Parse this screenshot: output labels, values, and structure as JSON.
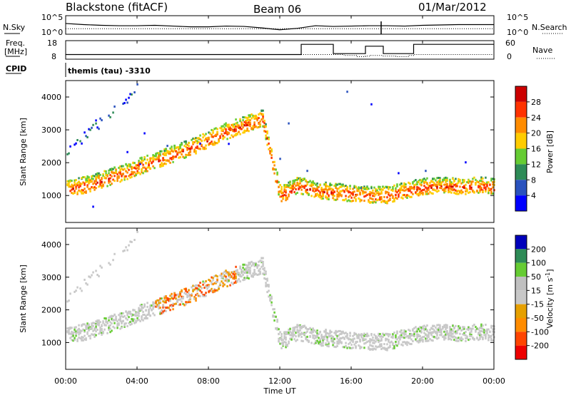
{
  "header": {
    "site": "Blackstone (fitACF)",
    "beam": "Beam 06",
    "date": "01/Mar/2012"
  },
  "top_panels": {
    "nsky_label": "N.Sky",
    "nsky_ticks": [
      "10^5",
      "10^0"
    ],
    "nsearch_label": "N.Search",
    "nsearch_ticks": [
      "10^5",
      "10^0"
    ],
    "freq_label": "Freq.",
    "freq_unit": "[MHz]",
    "freq_ticks": [
      "18",
      "8"
    ],
    "nave_label": "Nave",
    "nave_ticks": [
      "60",
      "0"
    ],
    "cpid_label": "CPID",
    "cpid_value": "themis (tau) -3310"
  },
  "x_axis": {
    "ticks": [
      "00:00",
      "04:00",
      "08:00",
      "12:00",
      "16:00",
      "20:00",
      "00:00"
    ],
    "label": "Time UT"
  },
  "colors": {
    "power": [
      "#0000ff",
      "#2a52be",
      "#2e8b57",
      "#66cc33",
      "#ffcc00",
      "#ff8c00",
      "#ff3300",
      "#cc0000"
    ],
    "velocity": [
      "#ee0000",
      "#ff4500",
      "#ff8c00",
      "#e6a000",
      "#c8c8c8",
      "#c0c0c0",
      "#66cc33",
      "#2e8b57",
      "#0000bb"
    ]
  },
  "chart_data": [
    {
      "type": "line",
      "title": "N.Sky / N.Search",
      "x": [
        0,
        1,
        2,
        3,
        4,
        5,
        6,
        7,
        8,
        9,
        10,
        11,
        12,
        13,
        14,
        15,
        16,
        17,
        18,
        19,
        20,
        21,
        22,
        23,
        24
      ],
      "series": [
        {
          "name": "N.Sky",
          "values": [
            2.9,
            2.6,
            2.4,
            2.3,
            2.3,
            2.4,
            2.2,
            2.0,
            2.0,
            2.2,
            2.1,
            1.7,
            1.2,
            1.6,
            2.3,
            2.1,
            2.2,
            2.3,
            2.3,
            2.2,
            2.4,
            2.5,
            2.6,
            2.6,
            2.6
          ]
        },
        {
          "name": "N.Search",
          "values": [
            1.5,
            1.5,
            1.5,
            1.5,
            1.5,
            1.5,
            1.5,
            1.5,
            1.5,
            1.5,
            1.5,
            1.5,
            1.5,
            1.5,
            1.5,
            1.5,
            1.5,
            1.5,
            1.5,
            1.5,
            1.5,
            1.5,
            1.5,
            1.5,
            1.5
          ]
        }
      ],
      "xlabel": "",
      "ylabel": ""
    },
    {
      "type": "line",
      "title": "Freq. / Nave",
      "x": [
        0,
        2,
        4,
        6,
        8,
        10,
        12,
        13,
        13.2,
        14.9,
        15,
        15.6,
        16.3,
        16.8,
        17.1,
        17.8,
        18.5,
        19.2,
        19.5,
        22,
        24
      ],
      "series": [
        {
          "name": "Freq.",
          "values": [
            10.5,
            10.5,
            10.5,
            10.5,
            10.5,
            10.5,
            10.5,
            10.5,
            16,
            16,
            11,
            11,
            11,
            15,
            15,
            11,
            11,
            11,
            16,
            16,
            16
          ]
        },
        {
          "name": "Nave",
          "values": [
            15,
            15,
            15,
            15,
            15,
            15,
            15,
            15,
            15,
            15,
            15,
            12,
            8,
            10,
            12,
            10,
            8,
            12,
            15,
            15,
            15
          ]
        }
      ],
      "xlabel": "",
      "ylabel": ""
    },
    {
      "type": "heatmap",
      "title": "",
      "xlabel": "",
      "ylabel": "Slant Range [km]",
      "xlim": [
        0,
        24
      ],
      "ylim": [
        180,
        4500
      ],
      "y_ticks": [
        1000,
        2000,
        3000,
        4000
      ],
      "colorbar_label": "Power [dB]",
      "colorbar_ticks": [
        28,
        24,
        20,
        16,
        12,
        8,
        4
      ],
      "features": [
        {
          "name": "main-band",
          "x": [
            0,
            1,
            2,
            3,
            4,
            5,
            6,
            7,
            8,
            9,
            10,
            11,
            12,
            13,
            14,
            15,
            16,
            17,
            18,
            19,
            20,
            21,
            22,
            23,
            24
          ],
          "y": [
            1200,
            1300,
            1450,
            1650,
            1850,
            2050,
            2250,
            2450,
            2700,
            2950,
            3150,
            3350,
            1000,
            1300,
            1150,
            1100,
            1050,
            1000,
            1000,
            1150,
            1250,
            1300,
            1250,
            1300,
            1250
          ]
        },
        {
          "name": "upper-band",
          "x": [
            0,
            1,
            2,
            3,
            4
          ],
          "y": [
            2300,
            2800,
            3300,
            3800,
            4300
          ]
        }
      ]
    },
    {
      "type": "heatmap",
      "title": "",
      "xlabel": "Time UT",
      "ylabel": "Slant Range [km]",
      "xlim": [
        0,
        24
      ],
      "ylim": [
        180,
        4500
      ],
      "y_ticks": [
        1000,
        2000,
        3000,
        4000
      ],
      "colorbar_label": "Velocity [m s-1]",
      "colorbar_ticks": [
        200,
        100,
        50,
        15,
        -15,
        -50,
        -100,
        -200
      ]
    }
  ]
}
